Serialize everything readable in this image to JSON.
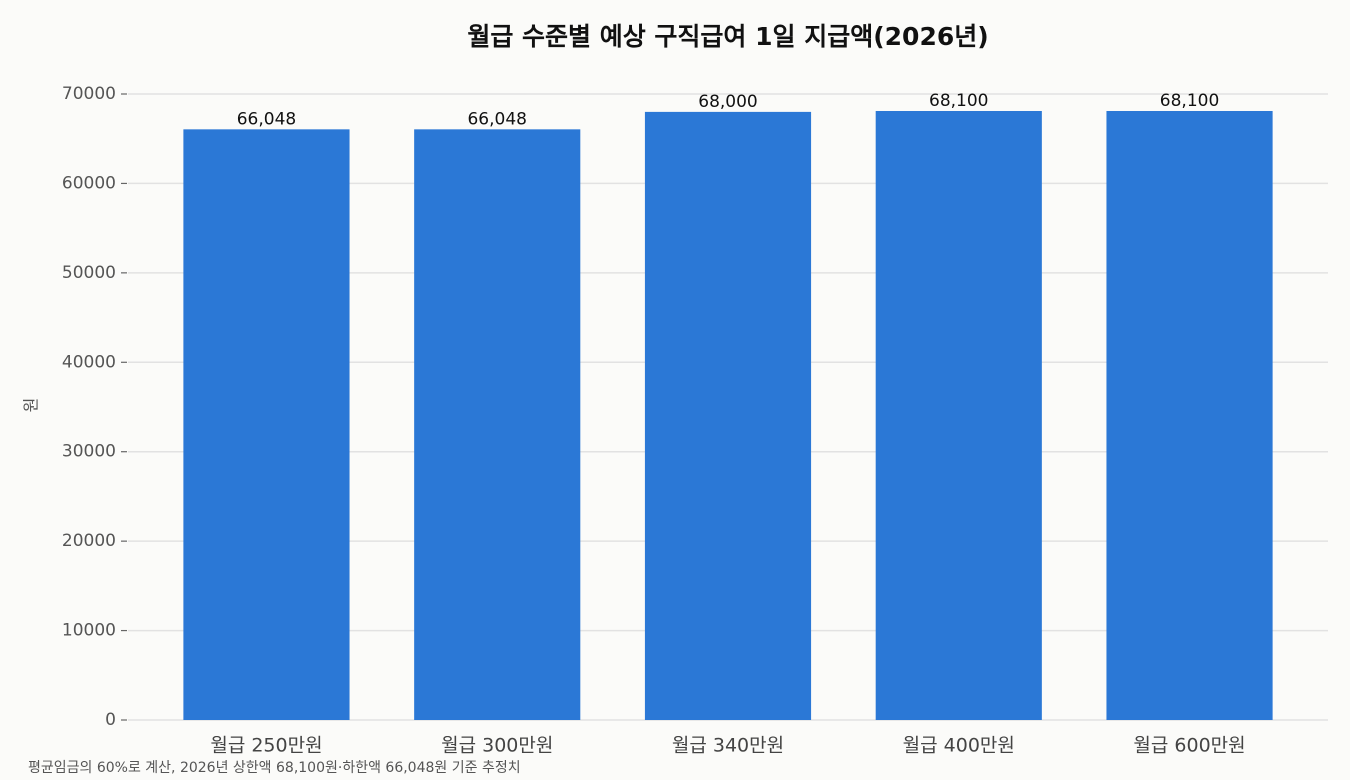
{
  "chart_data": {
    "type": "bar",
    "title": "월급 수준별 예상 구직급여 1일 지급액(2026년)",
    "categories": [
      "월급 250만원",
      "월급 300만원",
      "월급 340만원",
      "월급 400만원",
      "월급 600만원"
    ],
    "values": [
      66048,
      66048,
      68000,
      68100,
      68100
    ],
    "value_labels": [
      "66,048",
      "66,048",
      "68,000",
      "68,100",
      "68,100"
    ],
    "color": "#2b78d6",
    "y_label": "원",
    "ylim": [
      0,
      70000
    ],
    "yticks": [
      0,
      10000,
      20000,
      30000,
      40000,
      50000,
      60000,
      70000
    ],
    "grid": true,
    "footnote": "평균임금의 60%로 계산, 2026년 상한액 68,100원·하한액 66,048원 기준 추정치"
  }
}
